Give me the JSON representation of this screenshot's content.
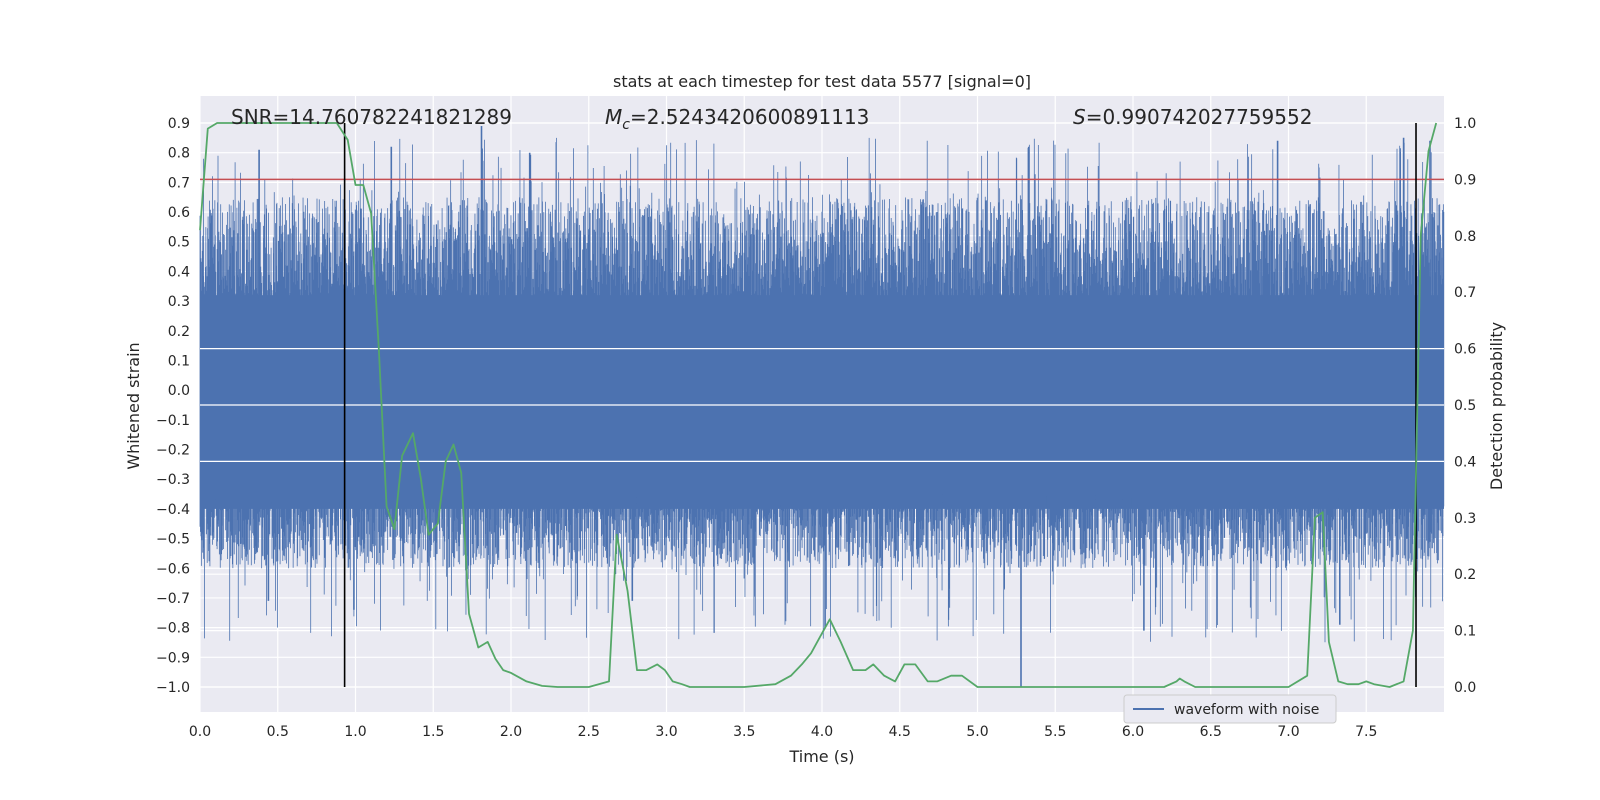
{
  "chart_data": {
    "type": "line",
    "title": "stats at each timestep for test data 5577 [signal=0]",
    "xlabel": "Time (s)",
    "ylabel_left": "Whitened strain",
    "ylabel_right": "Detection probability",
    "xlim": [
      0.0,
      8.0
    ],
    "ylim_left": [
      -1.0,
      0.9
    ],
    "ylim_right": [
      0.0,
      1.0
    ],
    "x_ticks": [
      "0.0",
      "0.5",
      "1.0",
      "1.5",
      "2.0",
      "2.5",
      "3.0",
      "3.5",
      "4.0",
      "4.5",
      "5.0",
      "5.5",
      "6.0",
      "6.5",
      "7.0",
      "7.5"
    ],
    "y_ticks_left": [
      "0.9",
      "0.8",
      "0.7",
      "0.6",
      "0.5",
      "0.4",
      "0.3",
      "0.2",
      "0.1",
      "0.0",
      "−0.1",
      "−0.2",
      "−0.3",
      "−0.4",
      "−0.5",
      "−0.6",
      "−0.7",
      "−0.8",
      "−0.9",
      "−1.0"
    ],
    "y_ticks_right": [
      "1.0",
      "0.9",
      "0.8",
      "0.7",
      "0.6",
      "0.5",
      "0.4",
      "0.3",
      "0.2",
      "0.1",
      "0.0"
    ],
    "annotations": {
      "snr": "SNR=14.760782241821289",
      "mc_prefix": "M",
      "mc_sub": "c",
      "mc_value": "=2.5243420600891113",
      "s_prefix": "S",
      "s_value": "=0.990742027759552"
    },
    "threshold": 0.9,
    "vertical_lines_x": [
      0.93,
      7.82
    ],
    "legend": [
      "waveform with noise"
    ],
    "grid": true,
    "series": [
      {
        "name": "waveform with noise",
        "color": "#4c72b0",
        "axis": "left",
        "description": "dense whitened strain noise, core band about -0.4 to 0.3, peaks to about 0.9 and dips to about -1.0"
      },
      {
        "name": "detection probability",
        "color": "#55a868",
        "axis": "right",
        "x": [
          0.0,
          0.05,
          0.11,
          0.2,
          0.3,
          0.4,
          0.5,
          0.6,
          0.7,
          0.8,
          0.88,
          0.95,
          1.0,
          1.05,
          1.1,
          1.15,
          1.2,
          1.25,
          1.3,
          1.37,
          1.42,
          1.47,
          1.53,
          1.58,
          1.63,
          1.68,
          1.73,
          1.79,
          1.85,
          1.9,
          1.95,
          2.0,
          2.1,
          2.2,
          2.3,
          2.5,
          2.63,
          2.68,
          2.75,
          2.81,
          2.87,
          2.94,
          2.99,
          3.04,
          3.1,
          3.15,
          3.3,
          3.5,
          3.7,
          3.8,
          3.87,
          3.93,
          3.99,
          4.05,
          4.12,
          4.2,
          4.28,
          4.33,
          4.4,
          4.47,
          4.53,
          4.6,
          4.68,
          4.74,
          4.83,
          4.9,
          5.0,
          5.2,
          5.5,
          6.0,
          6.2,
          6.28,
          6.3,
          6.33,
          6.4,
          6.5,
          6.6,
          6.7,
          6.9,
          7.0,
          7.12,
          7.17,
          7.22,
          7.26,
          7.32,
          7.38,
          7.45,
          7.5,
          7.55,
          7.65,
          7.74,
          7.8,
          7.85,
          7.9,
          7.95
        ],
        "y": [
          0.81,
          0.99,
          1.0,
          1.0,
          1.0,
          1.0,
          1.0,
          1.0,
          1.0,
          1.0,
          1.0,
          0.97,
          0.89,
          0.89,
          0.84,
          0.6,
          0.32,
          0.28,
          0.41,
          0.45,
          0.37,
          0.27,
          0.29,
          0.4,
          0.43,
          0.38,
          0.13,
          0.07,
          0.08,
          0.05,
          0.03,
          0.025,
          0.01,
          0.002,
          0.0,
          0.0,
          0.01,
          0.27,
          0.17,
          0.03,
          0.03,
          0.04,
          0.03,
          0.01,
          0.005,
          0.0,
          0.0,
          0.0,
          0.005,
          0.02,
          0.04,
          0.06,
          0.09,
          0.12,
          0.08,
          0.03,
          0.03,
          0.04,
          0.02,
          0.01,
          0.04,
          0.04,
          0.01,
          0.01,
          0.02,
          0.02,
          0.0,
          0.0,
          0.0,
          0.0,
          0.0,
          0.01,
          0.015,
          0.01,
          0.0,
          0.0,
          0.0,
          0.0,
          0.0,
          0.0,
          0.02,
          0.3,
          0.31,
          0.08,
          0.01,
          0.005,
          0.005,
          0.01,
          0.005,
          0.0,
          0.01,
          0.1,
          0.8,
          0.95,
          1.0
        ]
      }
    ]
  }
}
